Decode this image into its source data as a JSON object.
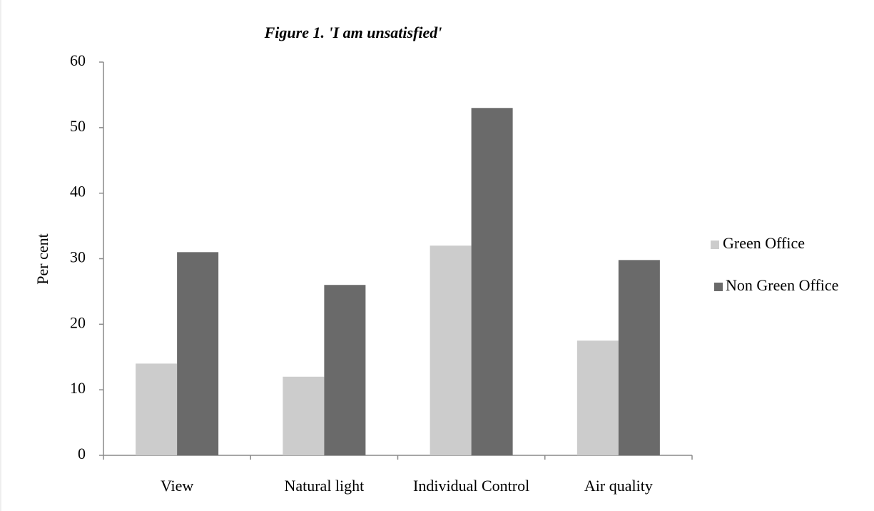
{
  "chart_data": {
    "type": "bar",
    "title": "Figure 1. 'I am unsatisfied'",
    "y_label": "Per cent",
    "categories": [
      "View",
      "Natural light",
      "Individual Control",
      "Air quality"
    ],
    "series": [
      {
        "name": "Green Office",
        "color": "#cccccc",
        "values": [
          14,
          12,
          32,
          17.5
        ]
      },
      {
        "name": "Non Green Office",
        "color": "#6a6a6a",
        "values": [
          31,
          26,
          53,
          29.8
        ]
      }
    ],
    "ylim": [
      0,
      60
    ],
    "yticks": [
      0,
      10,
      20,
      30,
      40,
      50,
      60
    ],
    "legend": "right"
  }
}
